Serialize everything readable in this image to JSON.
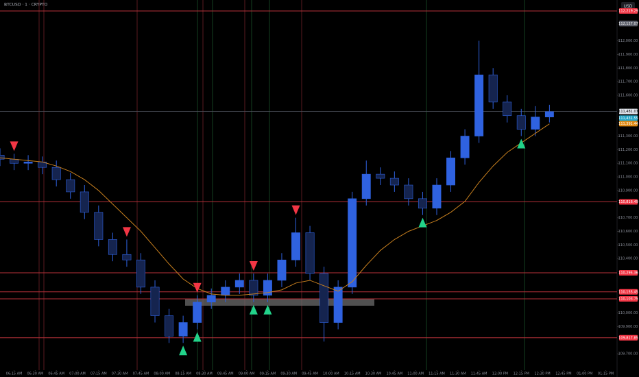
{
  "chart_data": {
    "type": "candlestick",
    "title": "BTCUSD · 1 · CRYPTO",
    "currency": "USD",
    "x": [
      5,
      15,
      25,
      35,
      45,
      55,
      65,
      75,
      85,
      95,
      105,
      115,
      125,
      135,
      145,
      155,
      165,
      175,
      185,
      195,
      205,
      215,
      225,
      235,
      245,
      255,
      265,
      275,
      285,
      295,
      305,
      315,
      325,
      335,
      345,
      355,
      365,
      375,
      385,
      395
    ],
    "open": [
      111160,
      111130,
      111100,
      111110,
      111070,
      110980,
      110890,
      110740,
      110540,
      110430,
      110390,
      110190,
      109980,
      109830,
      109930,
      110080,
      110130,
      110190,
      110240,
      110130,
      110240,
      110390,
      110590,
      110290,
      109930,
      110190,
      110840,
      111020,
      110990,
      110940,
      110840,
      110770,
      110940,
      111140,
      111300,
      111750,
      111550,
      111450,
      111350,
      111440
    ],
    "high": [
      111210,
      111170,
      111160,
      111150,
      111120,
      111030,
      110940,
      110790,
      110590,
      110540,
      110440,
      110240,
      110030,
      109980,
      110130,
      110180,
      110240,
      110290,
      110290,
      110290,
      110440,
      110700,
      110640,
      110340,
      110240,
      110890,
      111120,
      111070,
      111040,
      110990,
      110890,
      110990,
      111190,
      111350,
      112000,
      111800,
      111600,
      111500,
      111520,
      111530
    ],
    "low": [
      111080,
      111050,
      111050,
      111020,
      110930,
      110840,
      110690,
      110490,
      110380,
      110340,
      110140,
      109930,
      109780,
      109780,
      109880,
      110030,
      110080,
      110140,
      110080,
      110080,
      110190,
      110340,
      110240,
      109790,
      109880,
      110140,
      110790,
      110940,
      110890,
      110790,
      110720,
      110720,
      110890,
      111090,
      111250,
      111500,
      111400,
      111300,
      111300,
      111400
    ],
    "close": [
      111130,
      111100,
      111110,
      111070,
      110980,
      110890,
      110740,
      110540,
      110430,
      110390,
      110190,
      109980,
      109830,
      109930,
      110080,
      110130,
      110190,
      110240,
      110130,
      110240,
      110390,
      110590,
      110290,
      109930,
      110190,
      110840,
      111020,
      110990,
      110940,
      110840,
      110770,
      110940,
      111140,
      111300,
      111750,
      111550,
      111450,
      111350,
      111440,
      111480
    ],
    "up_color": "#2f62e0",
    "down_color": "#15244f",
    "ma": {
      "color": "#c77f1e",
      "values": [
        111140,
        111130,
        111120,
        111110,
        111080,
        111040,
        110980,
        110900,
        110800,
        110700,
        110600,
        110480,
        110360,
        110250,
        110180,
        110140,
        110130,
        110130,
        110140,
        110150,
        110170,
        110220,
        110240,
        110200,
        110160,
        110230,
        110350,
        110460,
        110540,
        110600,
        110640,
        110680,
        110740,
        110820,
        110960,
        111080,
        111180,
        111250,
        111320,
        111390
      ]
    },
    "sell_signals": [
      1,
      9,
      14,
      18,
      21
    ],
    "buy_signals": [
      13,
      14,
      18,
      19,
      30,
      37
    ],
    "sell_color": "#f23645",
    "buy_color": "#22d38a",
    "levels": [
      {
        "value": 112219.29,
        "label": "112,219.29"
      },
      {
        "value": 110816.49,
        "label": "110,816.49"
      },
      {
        "value": 110295.36,
        "label": "110,295.36"
      },
      {
        "value": 110155.45,
        "label": "110,155.45"
      },
      {
        "value": 110103.75,
        "label": "110,103.75"
      },
      {
        "value": 109817.85,
        "label": "109,817.85"
      }
    ],
    "level_color": "#b8323a",
    "price_labels": [
      {
        "value": 112127.07,
        "label": "112,127.07",
        "color": "#5d606b"
      },
      {
        "value": 111481.07,
        "label": "111,481.07",
        "color": "#e0e3eb"
      },
      {
        "value": 111431.55,
        "label": "111,431.55",
        "color": "#26a6c7"
      },
      {
        "value": 111391.44,
        "label": "111,391.44",
        "color": "#e08a13"
      }
    ],
    "xlim": [
      5,
      443
    ],
    "ylim": [
      109580,
      112300
    ],
    "xticks": [
      {
        "value": 15,
        "label": "06:15 AM"
      },
      {
        "value": 30,
        "label": "06:30 AM"
      },
      {
        "value": 45,
        "label": "06:45 AM"
      },
      {
        "value": 60,
        "label": "07:00 AM"
      },
      {
        "value": 75,
        "label": "07:15 AM"
      },
      {
        "value": 90,
        "label": "07:30 AM"
      },
      {
        "value": 105,
        "label": "07:45 AM"
      },
      {
        "value": 120,
        "label": "08:00 AM"
      },
      {
        "value": 135,
        "label": "08:15 AM"
      },
      {
        "value": 150,
        "label": "08:30 AM"
      },
      {
        "value": 165,
        "label": "08:45 AM"
      },
      {
        "value": 180,
        "label": "09:00 AM"
      },
      {
        "value": 195,
        "label": "09:15 AM"
      },
      {
        "value": 210,
        "label": "09:30 AM"
      },
      {
        "value": 225,
        "label": "09:45 AM"
      },
      {
        "value": 240,
        "label": "10:00 AM"
      },
      {
        "value": 255,
        "label": "10:15 AM"
      },
      {
        "value": 270,
        "label": "10:30 AM"
      },
      {
        "value": 285,
        "label": "10:45 AM"
      },
      {
        "value": 300,
        "label": "11:00 AM"
      },
      {
        "value": 315,
        "label": "11:15 AM"
      },
      {
        "value": 330,
        "label": "11:30 AM"
      },
      {
        "value": 345,
        "label": "11:45 AM"
      },
      {
        "value": 360,
        "label": "12:00 PM"
      },
      {
        "value": 375,
        "label": "12:15 PM"
      },
      {
        "value": 390,
        "label": "12:30 PM"
      },
      {
        "value": 405,
        "label": "12:45 PM"
      },
      {
        "value": 420,
        "label": "01:00 PM"
      },
      {
        "value": 435,
        "label": "01:15 PM"
      }
    ],
    "yticks": [
      {
        "value": 109700,
        "label": "109,700.00"
      },
      {
        "value": 109900,
        "label": "109,900.00"
      },
      {
        "value": 110000,
        "label": "110,000.00"
      },
      {
        "value": 110400,
        "label": "110,400.00"
      },
      {
        "value": 110500,
        "label": "110,500.00"
      },
      {
        "value": 110600,
        "label": "110,600.00"
      },
      {
        "value": 110700,
        "label": "110,700.00"
      },
      {
        "value": 110900,
        "label": "110,900.00"
      },
      {
        "value": 111000,
        "label": "111,000.00"
      },
      {
        "value": 111100,
        "label": "111,100.00"
      },
      {
        "value": 111200,
        "label": "111,200.00"
      },
      {
        "value": 111300,
        "label": "111,300.00"
      },
      {
        "value": 111600,
        "label": "111,600.00"
      },
      {
        "value": 111700,
        "label": "111,700.00"
      },
      {
        "value": 111800,
        "label": "111,800.00"
      },
      {
        "value": 111900,
        "label": "111,900.00"
      },
      {
        "value": 112000,
        "label": "112,000.00"
      }
    ]
  }
}
